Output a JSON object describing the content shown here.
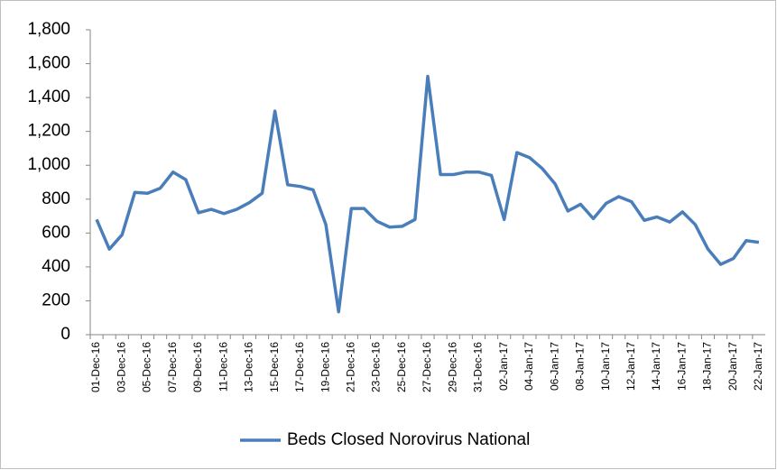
{
  "chart_data": {
    "type": "line",
    "categories": [
      "01-Dec-16",
      null,
      "03-Dec-16",
      null,
      "05-Dec-16",
      null,
      "07-Dec-16",
      null,
      "09-Dec-16",
      null,
      "11-Dec-16",
      null,
      "13-Dec-16",
      null,
      "15-Dec-16",
      null,
      "17-Dec-16",
      null,
      "19-Dec-16",
      null,
      "21-Dec-16",
      null,
      "23-Dec-16",
      null,
      "25-Dec-16",
      null,
      "27-Dec-16",
      null,
      "29-Dec-16",
      null,
      "31-Dec-16",
      null,
      "02-Jan-17",
      null,
      "04-Jan-17",
      null,
      "06-Jan-17",
      null,
      "08-Jan-17",
      null,
      "10-Jan-17",
      null,
      "12-Jan-17",
      null,
      "14-Jan-17",
      null,
      "16-Jan-17",
      null,
      "18-Jan-17",
      null,
      "20-Jan-17",
      null,
      "22-Jan-17"
    ],
    "series": [
      {
        "name": "Beds Closed Norovirus National",
        "color": "#4a7ebb",
        "values": [
          680,
          505,
          590,
          840,
          835,
          865,
          960,
          915,
          720,
          740,
          715,
          740,
          780,
          835,
          1320,
          885,
          875,
          855,
          650,
          135,
          745,
          745,
          670,
          635,
          640,
          680,
          1525,
          945,
          945,
          960,
          960,
          940,
          680,
          1075,
          1045,
          980,
          890,
          730,
          770,
          685,
          775,
          815,
          785,
          675,
          695,
          665,
          725,
          650,
          505,
          415,
          450,
          555,
          545
        ]
      }
    ],
    "ylim": [
      0,
      1800
    ],
    "yticks": [
      0,
      200,
      400,
      600,
      800,
      {
        "value": 1000,
        "label": "1,000"
      },
      {
        "value": 1200,
        "label": "1,200"
      },
      {
        "value": 1400,
        "label": "1,400"
      },
      {
        "value": 1600,
        "label": "1,600"
      },
      {
        "value": 1800,
        "label": "1,800"
      }
    ],
    "legend": "bottom"
  }
}
